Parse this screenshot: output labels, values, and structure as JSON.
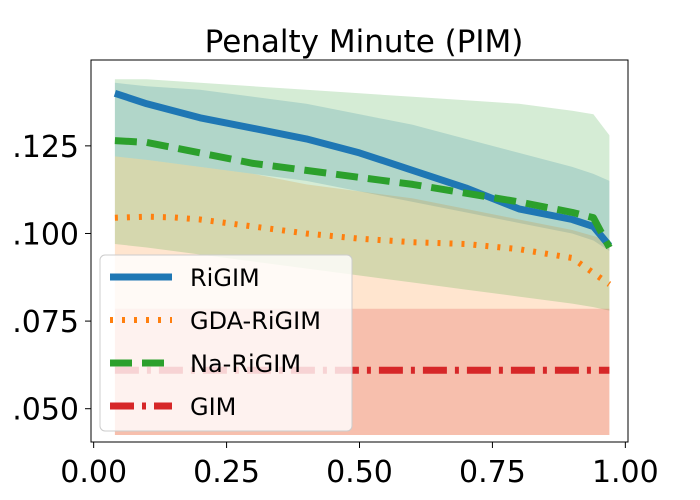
{
  "chart_data": {
    "type": "line",
    "title": "Penalty Minute (PIM)",
    "xlabel": "",
    "ylabel": "",
    "xlim": [
      -0.005,
      1.005
    ],
    "ylim": [
      0.0405,
      0.1495
    ],
    "xticks": [
      0.0,
      0.25,
      0.5,
      0.75,
      1.0
    ],
    "xtick_labels": [
      "0.00",
      "0.25",
      "0.50",
      "0.75",
      "1.00"
    ],
    "yticks": [
      0.05,
      0.075,
      0.1,
      0.125
    ],
    "ytick_labels": [
      ".050",
      ".075",
      ".100",
      ".125"
    ],
    "grid": false,
    "legend_position": "lower-left",
    "series": [
      {
        "name": "RiGIM",
        "color": "#1f77b4",
        "style": "solid",
        "band_color": "#1f77b4",
        "x": [
          0.04,
          0.1,
          0.2,
          0.3,
          0.4,
          0.5,
          0.6,
          0.7,
          0.8,
          0.9,
          0.94,
          0.97
        ],
        "y": [
          0.14,
          0.137,
          0.133,
          0.13,
          0.127,
          0.123,
          0.118,
          0.113,
          0.107,
          0.104,
          0.102,
          0.0965
        ],
        "band_low": [
          0.122,
          0.121,
          0.119,
          0.117,
          0.115,
          0.112,
          0.109,
          0.106,
          0.103,
          0.1,
          0.098,
          0.095
        ],
        "band_high": [
          0.143,
          0.142,
          0.141,
          0.139,
          0.137,
          0.134,
          0.131,
          0.127,
          0.123,
          0.119,
          0.117,
          0.115
        ]
      },
      {
        "name": "GDA-RiGIM",
        "color": "#ff7f0e",
        "style": "dotted",
        "band_color": "#ff7f0e",
        "x": [
          0.04,
          0.1,
          0.15,
          0.2,
          0.3,
          0.4,
          0.5,
          0.6,
          0.7,
          0.8,
          0.9,
          0.97
        ],
        "y": [
          0.1045,
          0.1048,
          0.1046,
          0.104,
          0.102,
          0.1,
          0.0985,
          0.0975,
          0.097,
          0.0955,
          0.093,
          0.0855
        ],
        "band_low": [
          0.0425,
          0.0425,
          0.0425,
          0.0425,
          0.0425,
          0.0425,
          0.0425,
          0.0425,
          0.0425,
          0.0425,
          0.0425,
          0.0425
        ],
        "band_high": [
          0.122,
          0.121,
          0.12,
          0.119,
          0.117,
          0.114,
          0.112,
          0.11,
          0.107,
          0.104,
          0.101,
          0.098
        ]
      },
      {
        "name": "Na-RiGIM",
        "color": "#2ca02c",
        "style": "dashed",
        "band_color": "#2ca02c",
        "x": [
          0.04,
          0.1,
          0.2,
          0.3,
          0.4,
          0.5,
          0.6,
          0.7,
          0.8,
          0.9,
          0.94,
          0.97
        ],
        "y": [
          0.1265,
          0.126,
          0.123,
          0.12,
          0.118,
          0.116,
          0.114,
          0.1115,
          0.109,
          0.106,
          0.1045,
          0.096
        ],
        "band_low": [
          0.097,
          0.096,
          0.094,
          0.092,
          0.09,
          0.088,
          0.086,
          0.084,
          0.082,
          0.08,
          0.079,
          0.078
        ],
        "band_high": [
          0.144,
          0.144,
          0.143,
          0.142,
          0.141,
          0.14,
          0.139,
          0.138,
          0.137,
          0.135,
          0.134,
          0.128
        ]
      },
      {
        "name": "GIM",
        "color": "#d62728",
        "style": "dashdot",
        "band_color": "#d62728",
        "x": [
          0.04,
          0.97
        ],
        "y": [
          0.061,
          0.061
        ],
        "band_low": [
          0.0425,
          0.0425
        ],
        "band_high": [
          0.0785,
          0.0785
        ]
      }
    ]
  }
}
